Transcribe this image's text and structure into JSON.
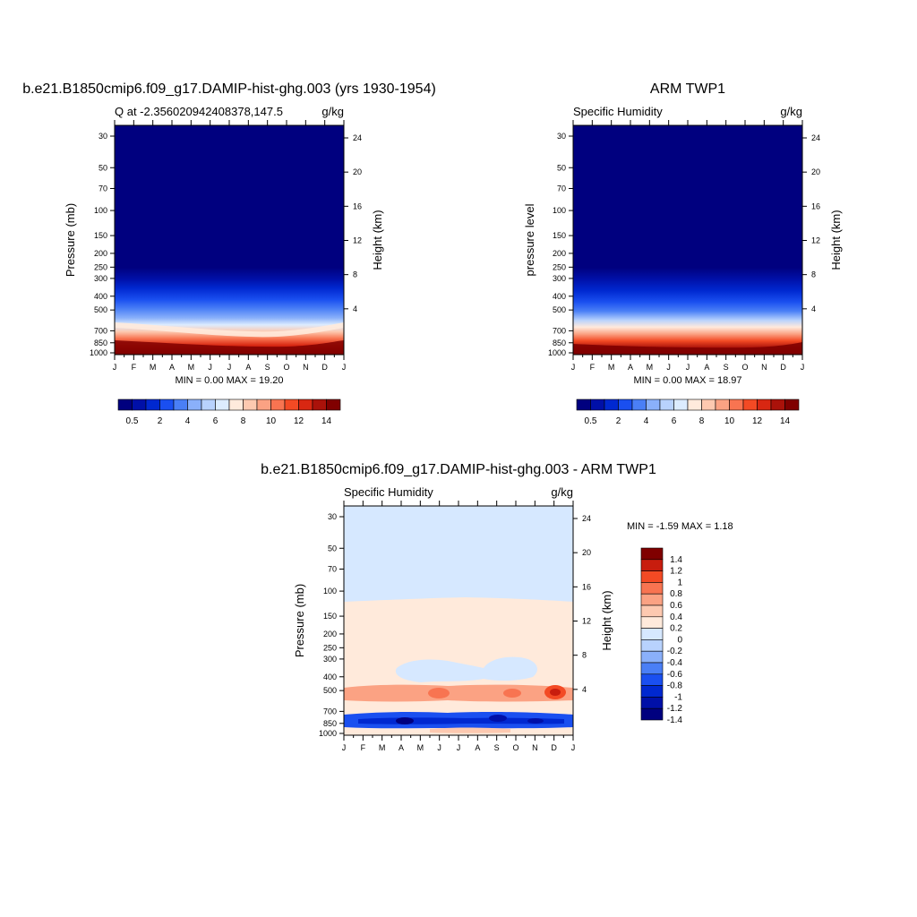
{
  "chart_data": [
    {
      "type": "heatmap",
      "title": "b.e21.B1850cmip6.f09_g17.DAMIP-hist-ghg.003 (yrs 1930-1954)",
      "subtitle_left": "Q at -2.356020942408378,147.5",
      "subtitle_right": "g/kg",
      "ylabel": "Pressure (mb)",
      "ylabel_right": "Height (km)",
      "x_ticks": [
        "J",
        "F",
        "M",
        "A",
        "M",
        "J",
        "J",
        "A",
        "S",
        "O",
        "N",
        "D",
        "J"
      ],
      "y_ticks": [
        30,
        50,
        70,
        100,
        150,
        200,
        250,
        300,
        400,
        500,
        700,
        850,
        1000
      ],
      "y_ticks_right": [
        24,
        20,
        16,
        12,
        8,
        4
      ],
      "stats": "MIN =   0.00 MAX =  19.20",
      "min": 0.0,
      "max": 19.2,
      "colorbar_labels": [
        "0.5",
        "2",
        "4",
        "6",
        "8",
        "10",
        "12",
        "14"
      ]
    },
    {
      "type": "heatmap",
      "title": "ARM TWP1",
      "subtitle_left": "Specific Humidity",
      "subtitle_right": "g/kg",
      "ylabel": "pressure level",
      "ylabel_right": "Height (km)",
      "x_ticks": [
        "J",
        "F",
        "M",
        "A",
        "M",
        "J",
        "J",
        "A",
        "S",
        "O",
        "N",
        "D",
        "J"
      ],
      "y_ticks": [
        30,
        50,
        70,
        100,
        150,
        200,
        250,
        300,
        400,
        500,
        700,
        850,
        1000
      ],
      "y_ticks_right": [
        24,
        20,
        16,
        12,
        8,
        4
      ],
      "stats": "MIN =   0.00 MAX =  18.97",
      "min": 0.0,
      "max": 18.97,
      "colorbar_labels": [
        "0.5",
        "2",
        "4",
        "6",
        "8",
        "10",
        "12",
        "14"
      ]
    },
    {
      "type": "heatmap",
      "title": "b.e21.B1850cmip6.f09_g17.DAMIP-hist-ghg.003 - ARM TWP1",
      "subtitle_left": "Specific Humidity",
      "subtitle_right": "g/kg",
      "ylabel": "Pressure (mb)",
      "ylabel_right": "Height (km)",
      "x_ticks": [
        "J",
        "F",
        "M",
        "A",
        "M",
        "J",
        "J",
        "A",
        "S",
        "O",
        "N",
        "D",
        "J"
      ],
      "y_ticks": [
        30,
        50,
        70,
        100,
        150,
        200,
        250,
        300,
        400,
        500,
        700,
        850,
        1000
      ],
      "y_ticks_right": [
        24,
        20,
        16,
        12,
        8,
        4
      ],
      "stats": "MIN = -1.59 MAX =   1.18",
      "min": -1.59,
      "max": 1.18,
      "colorbar_labels": [
        "1.4",
        "1.2",
        "1",
        "0.8",
        "0.6",
        "0.4",
        "0.2",
        "0",
        "-0.2",
        "-0.4",
        "-0.6",
        "-0.8",
        "-1",
        "-1.2",
        "-1.4"
      ]
    }
  ],
  "colors": {
    "seq_palette": [
      "#00007f",
      "#0010a8",
      "#0028d0",
      "#1a4ff0",
      "#4a7ff6",
      "#8ab0fa",
      "#b8d2fd",
      "#dcecff",
      "#ffeadc",
      "#fdc9b0",
      "#fba283",
      "#f87451",
      "#f34a24",
      "#d82712",
      "#aa120a",
      "#800000"
    ],
    "diff_palette": [
      "#00007f",
      "#0010a8",
      "#0028d0",
      "#1a4ff0",
      "#4a7ff6",
      "#8ab0fa",
      "#b8d2fd",
      "#d6e8ff",
      "#ffeadb",
      "#fdc9b0",
      "#fba283",
      "#f87451",
      "#f34a24",
      "#c81d0e",
      "#800000"
    ]
  }
}
